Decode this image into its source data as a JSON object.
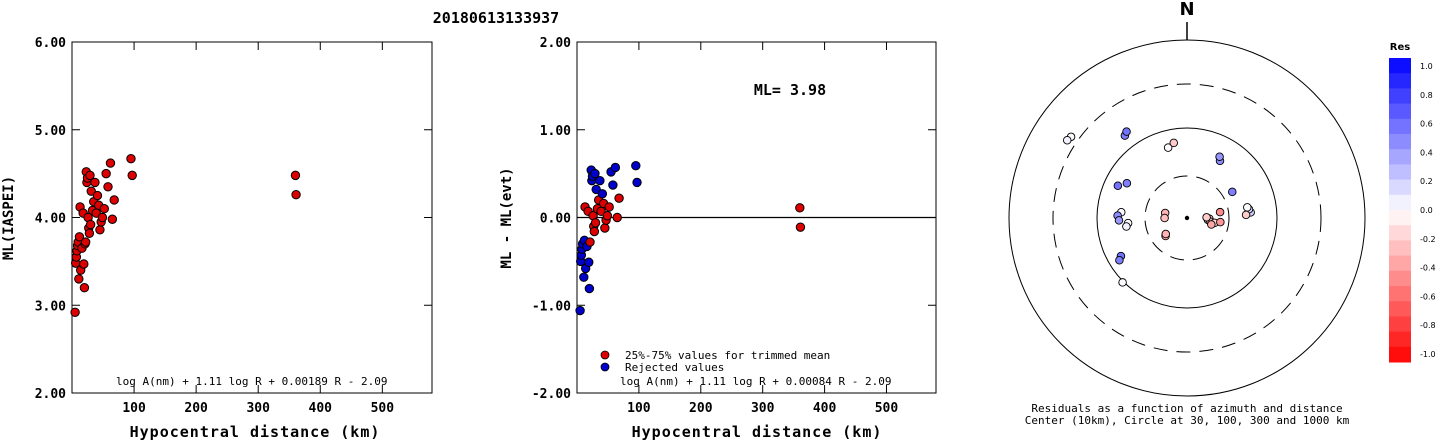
{
  "title": "20180613133937",
  "chart_data": [
    {
      "type": "scatter",
      "id": "left",
      "xlabel": "Hypocentral distance (km)",
      "ylabel": "ML(IASPEI)",
      "xlim": [
        0,
        580
      ],
      "ylim": [
        2.0,
        6.0
      ],
      "x_ticks": [
        100,
        200,
        300,
        400,
        500
      ],
      "y_ticks": [
        "2.00",
        "3.00",
        "4.00",
        "5.00",
        "6.00"
      ],
      "formula": "log A(nm) + 1.11 log R + 0.00189 R - 2.09",
      "marker_color": "#dd0000",
      "points": [
        [
          5,
          2.92
        ],
        [
          6,
          3.48
        ],
        [
          7,
          3.55
        ],
        [
          8,
          3.62
        ],
        [
          9,
          3.68
        ],
        [
          10,
          3.72
        ],
        [
          11,
          3.3
        ],
        [
          12,
          3.78
        ],
        [
          13,
          4.12
        ],
        [
          14,
          3.4
        ],
        [
          16,
          3.65
        ],
        [
          18,
          4.05
        ],
        [
          19,
          3.47
        ],
        [
          20,
          3.2
        ],
        [
          21,
          3.7
        ],
        [
          22,
          3.72
        ],
        [
          23,
          4.52
        ],
        [
          24,
          4.4
        ],
        [
          25,
          4.45
        ],
        [
          26,
          4.0
        ],
        [
          27,
          3.88
        ],
        [
          28,
          3.82
        ],
        [
          29,
          4.48
        ],
        [
          30,
          3.92
        ],
        [
          31,
          4.3
        ],
        [
          33,
          4.08
        ],
        [
          35,
          4.18
        ],
        [
          37,
          4.4
        ],
        [
          39,
          4.05
        ],
        [
          41,
          4.25
        ],
        [
          43,
          4.14
        ],
        [
          45,
          3.86
        ],
        [
          47,
          3.95
        ],
        [
          49,
          4.0
        ],
        [
          52,
          4.1
        ],
        [
          55,
          4.5
        ],
        [
          58,
          4.35
        ],
        [
          62,
          4.62
        ],
        [
          65,
          3.98
        ],
        [
          68,
          4.2
        ],
        [
          95,
          4.67
        ],
        [
          97,
          4.48
        ],
        [
          360,
          4.48
        ],
        [
          361,
          4.26
        ]
      ]
    },
    {
      "type": "scatter",
      "id": "middle",
      "xlabel": "Hypocentral distance (km)",
      "ylabel": "ML - ML(evt)",
      "xlim": [
        0,
        580
      ],
      "ylim": [
        -2.0,
        2.0
      ],
      "x_ticks": [
        100,
        200,
        300,
        400,
        500
      ],
      "y_ticks": [
        "-2.00",
        "-1.00",
        "0.00",
        "1.00",
        "2.00"
      ],
      "annotation": "ML= 3.98",
      "formula": "log A(nm) + 1.11 log R + 0.00084 R - 2.09",
      "legend": [
        {
          "label": "25%-75% values for trimmed mean",
          "color": "#dd0000"
        },
        {
          "label": "Rejected values",
          "color": "#0000cc"
        }
      ],
      "points": [
        {
          "x": 5,
          "y": -1.06,
          "c": "rej"
        },
        {
          "x": 6,
          "y": -0.5,
          "c": "rej"
        },
        {
          "x": 7,
          "y": -0.43,
          "c": "rej"
        },
        {
          "x": 8,
          "y": -0.36,
          "c": "rej"
        },
        {
          "x": 9,
          "y": -0.3,
          "c": "rej"
        },
        {
          "x": 11,
          "y": -0.68,
          "c": "rej"
        },
        {
          "x": 12,
          "y": -0.26,
          "c": "rej"
        },
        {
          "x": 13,
          "y": 0.12,
          "c": "in"
        },
        {
          "x": 14,
          "y": -0.58,
          "c": "rej"
        },
        {
          "x": 16,
          "y": -0.33,
          "c": "rej"
        },
        {
          "x": 18,
          "y": 0.07,
          "c": "in"
        },
        {
          "x": 19,
          "y": -0.51,
          "c": "rej"
        },
        {
          "x": 20,
          "y": -0.81,
          "c": "rej"
        },
        {
          "x": 21,
          "y": -0.28,
          "c": "in"
        },
        {
          "x": 23,
          "y": 0.54,
          "c": "rej"
        },
        {
          "x": 24,
          "y": 0.42,
          "c": "rej"
        },
        {
          "x": 25,
          "y": 0.47,
          "c": "rej"
        },
        {
          "x": 26,
          "y": 0.02,
          "c": "in"
        },
        {
          "x": 27,
          "y": -0.1,
          "c": "in"
        },
        {
          "x": 28,
          "y": -0.16,
          "c": "in"
        },
        {
          "x": 29,
          "y": 0.5,
          "c": "rej"
        },
        {
          "x": 30,
          "y": -0.06,
          "c": "in"
        },
        {
          "x": 31,
          "y": 0.32,
          "c": "rej"
        },
        {
          "x": 33,
          "y": 0.1,
          "c": "in"
        },
        {
          "x": 35,
          "y": 0.2,
          "c": "in"
        },
        {
          "x": 37,
          "y": 0.42,
          "c": "rej"
        },
        {
          "x": 39,
          "y": 0.07,
          "c": "in"
        },
        {
          "x": 41,
          "y": 0.27,
          "c": "rej"
        },
        {
          "x": 43,
          "y": 0.16,
          "c": "in"
        },
        {
          "x": 45,
          "y": -0.12,
          "c": "in"
        },
        {
          "x": 47,
          "y": -0.03,
          "c": "in"
        },
        {
          "x": 49,
          "y": 0.02,
          "c": "in"
        },
        {
          "x": 52,
          "y": 0.12,
          "c": "in"
        },
        {
          "x": 55,
          "y": 0.52,
          "c": "rej"
        },
        {
          "x": 58,
          "y": 0.37,
          "c": "rej"
        },
        {
          "x": 62,
          "y": 0.57,
          "c": "rej"
        },
        {
          "x": 65,
          "y": 0.0,
          "c": "in"
        },
        {
          "x": 68,
          "y": 0.22,
          "c": "in"
        },
        {
          "x": 95,
          "y": 0.59,
          "c": "rej"
        },
        {
          "x": 97,
          "y": 0.4,
          "c": "rej"
        },
        {
          "x": 360,
          "y": 0.11,
          "c": "in"
        },
        {
          "x": 361,
          "y": -0.11,
          "c": "in"
        }
      ]
    },
    {
      "type": "polar",
      "id": "azimuth",
      "north_label": "N",
      "caption": [
        "Residuals as a function of azimuth and distance",
        "Center (10km), Circle at 30, 100, 300 and 1000 km"
      ],
      "rings_km": [
        30,
        100,
        300,
        1000
      ],
      "colorbar": {
        "title": "Res",
        "labels": [
          "1.0",
          "0.8",
          "0.6",
          "0.4",
          "0.2",
          "0.0",
          "-0.2",
          "-0.4",
          "-0.6",
          "-0.8",
          "-1.0"
        ],
        "max_color": "#0000ff",
        "min_color": "#ff0000"
      },
      "stations": [
        {
          "az": 305,
          "dist": 420,
          "res": 0.02
        },
        {
          "az": 303,
          "dist": 440,
          "res": 0.05
        },
        {
          "az": 323,
          "dist": 160,
          "res": 0.5
        },
        {
          "az": 325,
          "dist": 170,
          "res": 0.55
        },
        {
          "az": 30,
          "dist": 65,
          "res": 0.45
        },
        {
          "az": 28,
          "dist": 70,
          "res": 0.42
        },
        {
          "az": 345,
          "dist": 75,
          "res": 0.02
        },
        {
          "az": 350,
          "dist": 80,
          "res": -0.2
        },
        {
          "az": 300,
          "dist": 70,
          "res": 0.5
        },
        {
          "az": 295,
          "dist": 80,
          "res": 0.55
        },
        {
          "az": 275,
          "dist": 65,
          "res": 0.02
        },
        {
          "az": 272,
          "dist": 70,
          "res": 0.45
        },
        {
          "az": 268,
          "dist": 68,
          "res": 0.4
        },
        {
          "az": 265,
          "dist": 55,
          "res": 0.0
        },
        {
          "az": 262,
          "dist": 58,
          "res": 0.05
        },
        {
          "az": 240,
          "dist": 80,
          "res": 0.55
        },
        {
          "az": 238,
          "dist": 85,
          "res": 0.5
        },
        {
          "az": 225,
          "dist": 105,
          "res": 0.02
        },
        {
          "az": 283,
          "dist": 16,
          "res": -0.3
        },
        {
          "az": 270,
          "dist": 16,
          "res": -0.25
        },
        {
          "az": 230,
          "dist": 20,
          "res": -0.35
        },
        {
          "az": 233,
          "dist": 19,
          "res": -0.3
        },
        {
          "az": 95,
          "dist": 15,
          "res": -0.3
        },
        {
          "az": 92,
          "dist": 16,
          "res": -0.25
        },
        {
          "az": 99,
          "dist": 17,
          "res": -0.2
        },
        {
          "az": 100,
          "dist": 20,
          "res": -0.15
        },
        {
          "az": 105,
          "dist": 18,
          "res": -0.35
        },
        {
          "az": 88,
          "dist": 14,
          "res": -0.2
        },
        {
          "az": 80,
          "dist": 24,
          "res": -0.45
        },
        {
          "az": 97,
          "dist": 24,
          "res": -0.4
        },
        {
          "az": 85,
          "dist": 62,
          "res": 0.2
        },
        {
          "az": 82,
          "dist": 60,
          "res": 0.15
        },
        {
          "az": 80,
          "dist": 58,
          "res": 0.02
        },
        {
          "az": 87,
          "dist": 55,
          "res": -0.2
        },
        {
          "az": 60,
          "dist": 45,
          "res": 0.5
        }
      ]
    }
  ]
}
